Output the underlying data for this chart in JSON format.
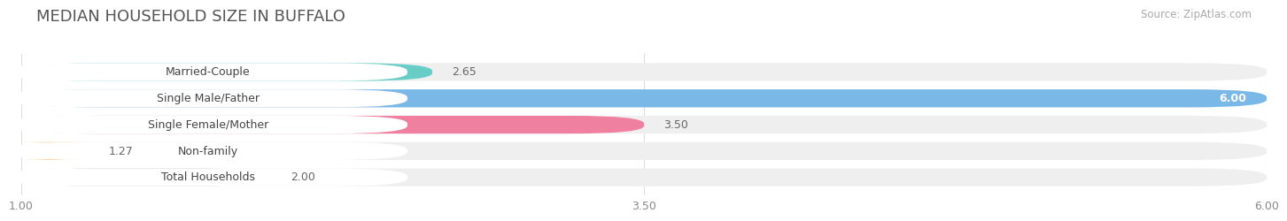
{
  "title": "MEDIAN HOUSEHOLD SIZE IN BUFFALO",
  "source": "Source: ZipAtlas.com",
  "categories": [
    "Married-Couple",
    "Single Male/Father",
    "Single Female/Mother",
    "Non-family",
    "Total Households"
  ],
  "values": [
    2.65,
    6.0,
    3.5,
    1.27,
    2.0
  ],
  "bar_colors": [
    "#68ccc7",
    "#7ab8e8",
    "#f080a0",
    "#f5c98a",
    "#b8a8d8"
  ],
  "xlim": [
    1.0,
    6.0
  ],
  "xticks": [
    1.0,
    3.5,
    6.0
  ],
  "xtick_labels": [
    "1.00",
    "3.50",
    "6.00"
  ],
  "background_color": "#ffffff",
  "bar_bg_color": "#efefef",
  "title_fontsize": 13,
  "label_fontsize": 9,
  "value_fontsize": 9,
  "source_fontsize": 8.5
}
